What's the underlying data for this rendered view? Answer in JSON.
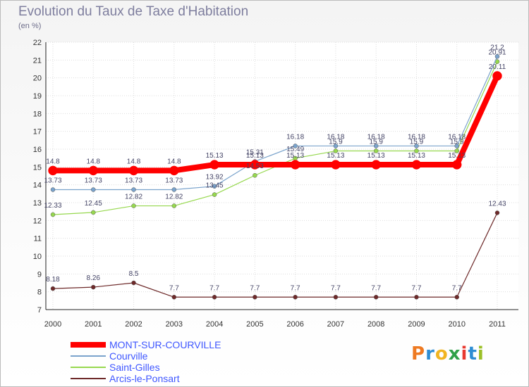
{
  "title": "Evolution du Taux de Taxe d'Habitation",
  "subtitle": "(en %)",
  "logo": {
    "text": "Proxiti",
    "letters": [
      "P",
      "r",
      "o",
      "x",
      "i",
      "t",
      "i"
    ],
    "colors": [
      "#ee7a22",
      "#2e8dd3",
      "#f1b521",
      "#2fa149",
      "#e8382f",
      "#2e8dd3",
      "#9bbf27"
    ]
  },
  "chart_data": {
    "type": "line",
    "x": [
      "2000",
      "2001",
      "2002",
      "2003",
      "2004",
      "2005",
      "2006",
      "2007",
      "2008",
      "2009",
      "2010",
      "2011"
    ],
    "ylim": [
      7,
      22
    ],
    "yticks": [
      7,
      8,
      9,
      10,
      11,
      12,
      13,
      14,
      15,
      16,
      17,
      18,
      19,
      20,
      21,
      22
    ],
    "grid": true,
    "series": [
      {
        "name": "Arcis-le-Ponsart",
        "color": "#6e2a2a",
        "width": 1.2,
        "values": [
          8.18,
          8.26,
          8.5,
          7.7,
          7.7,
          7.7,
          7.7,
          7.7,
          7.7,
          7.7,
          7.7,
          12.43
        ],
        "labels": [
          "8.18",
          "8.26",
          "8.5",
          "7.7",
          "7.7",
          "7.7",
          "7.7",
          "7.7",
          "7.7",
          "7.7",
          "7.7",
          "12.43"
        ]
      },
      {
        "name": "Saint-Gilles",
        "color": "#96d84e",
        "width": 1.2,
        "values": [
          12.33,
          12.45,
          12.82,
          12.82,
          13.45,
          14.53,
          15.49,
          15.9,
          15.9,
          15.9,
          15.9,
          20.91
        ],
        "labels": [
          "12.33",
          "12.45",
          "12.82",
          "12.82",
          "13.45",
          "14.53",
          "15.49",
          "15.9",
          "15.9",
          "15.9",
          "15.9",
          "20.91"
        ]
      },
      {
        "name": "Courville",
        "color": "#7aa3cc",
        "width": 1.2,
        "values": [
          13.73,
          13.73,
          13.73,
          13.73,
          13.92,
          15.31,
          16.18,
          16.18,
          16.18,
          16.18,
          16.18,
          21.2
        ],
        "labels": [
          "13.73",
          "13.73",
          "13.73",
          "13.73",
          "13.92",
          "15.31",
          "16.18",
          "16.18",
          "16.18",
          "16.18",
          "16.18",
          "21.2"
        ]
      },
      {
        "name": "MONT-SUR-COURVILLE",
        "color": "#ff0000",
        "width": 8,
        "values": [
          14.8,
          14.8,
          14.8,
          14.8,
          15.13,
          15.13,
          15.13,
          15.13,
          15.13,
          15.13,
          15.13,
          20.11
        ],
        "labels": [
          "14.8",
          "14.8",
          "14.8",
          "14.8",
          "15.13",
          "15.13",
          "15.13",
          "15.13",
          "15.13",
          "15.13",
          "15.13",
          "20.11"
        ]
      }
    ],
    "legend": [
      "MONT-SUR-COURVILLE",
      "Courville",
      "Saint-Gilles",
      "Arcis-le-Ponsart"
    ]
  }
}
